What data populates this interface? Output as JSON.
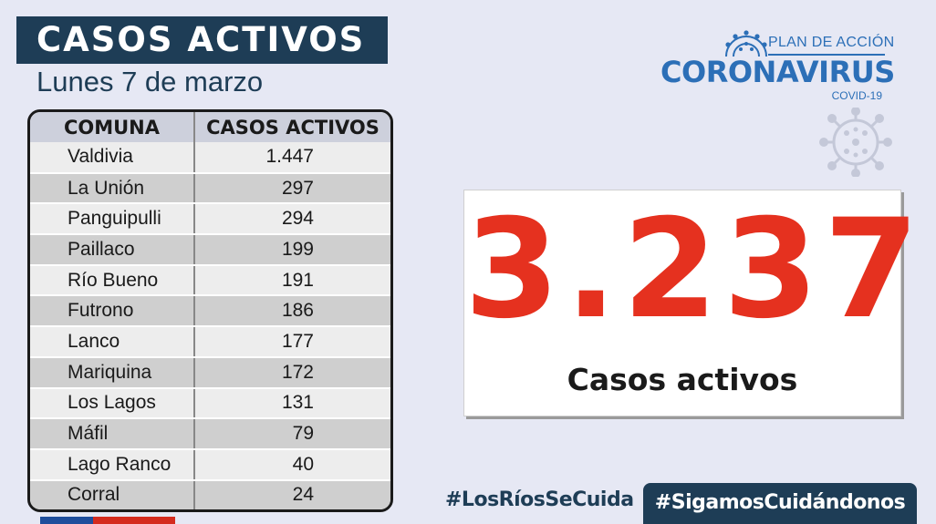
{
  "header": {
    "title": "CASOS ACTIVOS",
    "date": "Lunes 7 de marzo"
  },
  "table": {
    "headers": [
      "COMUNA",
      "CASOS ACTIVOS"
    ],
    "rows": [
      {
        "comuna": "Valdivia",
        "casos": "1.447"
      },
      {
        "comuna": "La Unión",
        "casos": "297"
      },
      {
        "comuna": "Panguipulli",
        "casos": "294"
      },
      {
        "comuna": "Paillaco",
        "casos": "199"
      },
      {
        "comuna": "Río Bueno",
        "casos": "191"
      },
      {
        "comuna": "Futrono",
        "casos": "186"
      },
      {
        "comuna": "Lanco",
        "casos": "177"
      },
      {
        "comuna": "Mariquina",
        "casos": "172"
      },
      {
        "comuna": "Los Lagos",
        "casos": "131"
      },
      {
        "comuna": "Máfil",
        "casos": "79"
      },
      {
        "comuna": "Lago Ranco",
        "casos": "40"
      },
      {
        "comuna": "Corral",
        "casos": "24"
      }
    ]
  },
  "logo": {
    "plan": "PLAN DE ACCIÓN",
    "main": "CORONAVIRUS",
    "sub": "COVID-19",
    "icon": "virus-icon"
  },
  "total": {
    "number": "3.237",
    "label": "Casos activos"
  },
  "hashtags": {
    "primary": "#LosRíosSeCuida",
    "secondary": "#SigamosCuidándonos"
  },
  "colors": {
    "navy": "#1e3d56",
    "accent_red": "#e5311f",
    "logo_blue": "#2c6fb7",
    "background": "#e6e8f4"
  }
}
